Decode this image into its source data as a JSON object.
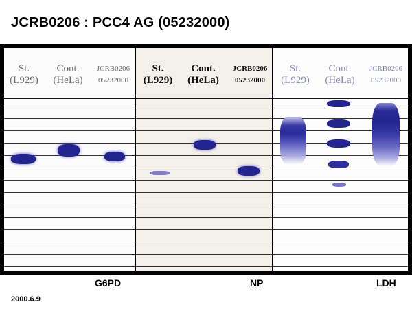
{
  "title": "JCRB0206 : PCC4 AG (05232000)",
  "date": "2000.6.9",
  "panels": [
    {
      "enzyme": "G6PD",
      "lanes": [
        {
          "line1": "St.",
          "line2": "(L929)"
        },
        {
          "line1": "Cont.",
          "line2": "(HeLa)"
        },
        {
          "line1": "JCRB0206",
          "line2": "05232000"
        }
      ]
    },
    {
      "enzyme": "NP",
      "lanes": [
        {
          "line1": "St.",
          "line2": "(L929)"
        },
        {
          "line1": "Cont.",
          "line2": "(HeLa)"
        },
        {
          "line1": "JCRB0206",
          "line2": "05232000"
        }
      ]
    },
    {
      "enzyme": "LDH",
      "lanes": [
        {
          "line1": "St.",
          "line2": "(L929)"
        },
        {
          "line1": "Cont.",
          "line2": "(HeLa)"
        },
        {
          "line1": "JCRB0206",
          "line2": "05232000"
        }
      ]
    }
  ],
  "colors": {
    "band": "#2a2a9a",
    "band_light": "#7a7ad0",
    "frame": "#000000"
  }
}
